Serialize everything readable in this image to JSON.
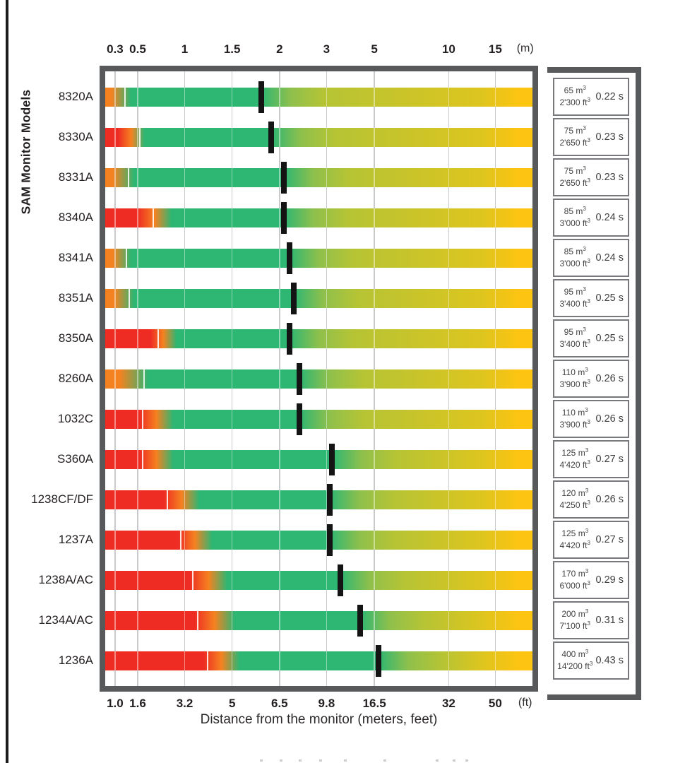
{
  "page": {
    "y_axis_title": "SAM Monitor Models",
    "x_axis_title": "Distance from the monitor (meters, feet)"
  },
  "units": {
    "top_axis": "(m)",
    "bottom_axis": "(ft)",
    "vol_m": "m",
    "vol_ft": "ft",
    "sup": "3",
    "seconds": "s"
  },
  "chart_data": {
    "type": "bar",
    "orientation": "horizontal-range-gradient",
    "title": "",
    "xlabel": "Distance from the monitor (meters, feet)",
    "ylabel": "SAM Monitor Models",
    "legend": "none",
    "grid": true,
    "x_axis": {
      "scale": "quasi-log",
      "top_tick_labels_m": [
        "0.3",
        "0.5",
        "1",
        "1.5",
        "2",
        "3",
        "5",
        "10",
        "15"
      ],
      "bottom_tick_labels_ft": [
        "1.0",
        "1.6",
        "3.2",
        "5",
        "6.5",
        "9.8",
        "16.5",
        "32",
        "50"
      ],
      "tick_percents": [
        2.3,
        7.6,
        18.6,
        29.7,
        40.8,
        51.8,
        63.0,
        80.4,
        91.3
      ]
    },
    "colors": {
      "red": "#ee2c24",
      "orange": "#f58220",
      "green": "#2eb673",
      "green_mid": "#8fc04c",
      "olive": "#b6c434",
      "yellow": "#ddc51f",
      "gold": "#fdc411",
      "marker": "#141414",
      "frame": "#58595b"
    },
    "rows": [
      {
        "model": "8320A",
        "start_color": "orange",
        "solid_end_pct": 1.5,
        "green_start_pct": 6.0,
        "divider_pct": 4.5,
        "marker_pct": 36.5,
        "marker_m": 1.8,
        "volume_m3": "65",
        "volume_ft3": "2'300",
        "response_s": "0.22"
      },
      {
        "model": "8330A",
        "start_color": "red",
        "solid_end_pct": 3.0,
        "green_start_pct": 9.2,
        "divider_pct": 8.0,
        "marker_pct": 38.9,
        "marker_m": 1.9,
        "volume_m3": "75",
        "volume_ft3": "2'650",
        "response_s": "0.23"
      },
      {
        "model": "8331A",
        "start_color": "orange",
        "solid_end_pct": 1.8,
        "green_start_pct": 6.8,
        "divider_pct": 5.3,
        "marker_pct": 41.9,
        "marker_m": 2.1,
        "volume_m3": "75",
        "volume_ft3": "2'650",
        "response_s": "0.23"
      },
      {
        "model": "8340A",
        "start_color": "red",
        "solid_end_pct": 7.6,
        "green_start_pct": 15.5,
        "divider_pct": 11.0,
        "marker_pct": 41.9,
        "marker_m": 2.1,
        "volume_m3": "85",
        "volume_ft3": "3'000",
        "response_s": "0.24"
      },
      {
        "model": "8341A",
        "start_color": "orange",
        "solid_end_pct": 1.8,
        "green_start_pct": 6.1,
        "divider_pct": 4.8,
        "marker_pct": 43.1,
        "marker_m": 2.2,
        "volume_m3": "85",
        "volume_ft3": "3'000",
        "response_s": "0.24"
      },
      {
        "model": "8351A",
        "start_color": "orange",
        "solid_end_pct": 2.1,
        "green_start_pct": 6.8,
        "divider_pct": 5.5,
        "marker_pct": 44.1,
        "marker_m": 2.3,
        "volume_m3": "95",
        "volume_ft3": "3'400",
        "response_s": "0.25"
      },
      {
        "model": "8350A",
        "start_color": "red",
        "solid_end_pct": 10.6,
        "green_start_pct": 16.7,
        "divider_pct": 12.2,
        "marker_pct": 43.1,
        "marker_m": 2.2,
        "volume_m3": "95",
        "volume_ft3": "3'400",
        "response_s": "0.25"
      },
      {
        "model": "8260A",
        "start_color": "orange",
        "solid_end_pct": 3.4,
        "green_start_pct": 10.1,
        "divider_pct": 9.0,
        "marker_pct": 45.5,
        "marker_m": 2.4,
        "volume_m3": "110",
        "volume_ft3": "3'900",
        "response_s": "0.26"
      },
      {
        "model": "1032C",
        "start_color": "red",
        "solid_end_pct": 8.1,
        "green_start_pct": 15.9,
        "divider_pct": 8.6,
        "marker_pct": 45.5,
        "marker_m": 2.4,
        "volume_m3": "110",
        "volume_ft3": "3'900",
        "response_s": "0.26"
      },
      {
        "model": "S360A",
        "start_color": "red",
        "solid_end_pct": 8.1,
        "green_start_pct": 15.9,
        "divider_pct": 8.6,
        "marker_pct": 53.1,
        "marker_m": 3.1,
        "volume_m3": "125",
        "volume_ft3": "4'420",
        "response_s": "0.27"
      },
      {
        "model": "1238CF/DF",
        "start_color": "red",
        "solid_end_pct": 13.7,
        "green_start_pct": 22.0,
        "divider_pct": 14.4,
        "marker_pct": 52.6,
        "marker_m": 3.1,
        "volume_m3": "120",
        "volume_ft3": "4'250",
        "response_s": "0.26"
      },
      {
        "model": "1237A",
        "start_color": "red",
        "solid_end_pct": 17.0,
        "green_start_pct": 25.0,
        "divider_pct": 17.5,
        "marker_pct": 52.6,
        "marker_m": 3.1,
        "volume_m3": "125",
        "volume_ft3": "4'420",
        "response_s": "0.27"
      },
      {
        "model": "1238A/AC",
        "start_color": "red",
        "solid_end_pct": 19.8,
        "green_start_pct": 28.6,
        "divider_pct": 20.3,
        "marker_pct": 55.0,
        "marker_m": 3.3,
        "volume_m3": "170",
        "volume_ft3": "6'000",
        "response_s": "0.29"
      },
      {
        "model": "1234A/AC",
        "start_color": "red",
        "solid_end_pct": 20.9,
        "green_start_pct": 30.3,
        "divider_pct": 21.5,
        "marker_pct": 59.6,
        "marker_m": 3.7,
        "volume_m3": "200",
        "volume_ft3": "7'100",
        "response_s": "0.31"
      },
      {
        "model": "1236A",
        "start_color": "red",
        "solid_end_pct": 23.0,
        "green_start_pct": 31.4,
        "divider_pct": 23.8,
        "marker_pct": 64.0,
        "marker_m": 5.1,
        "volume_m3": "400",
        "volume_ft3": "14'200",
        "response_s": "0.43"
      }
    ]
  }
}
